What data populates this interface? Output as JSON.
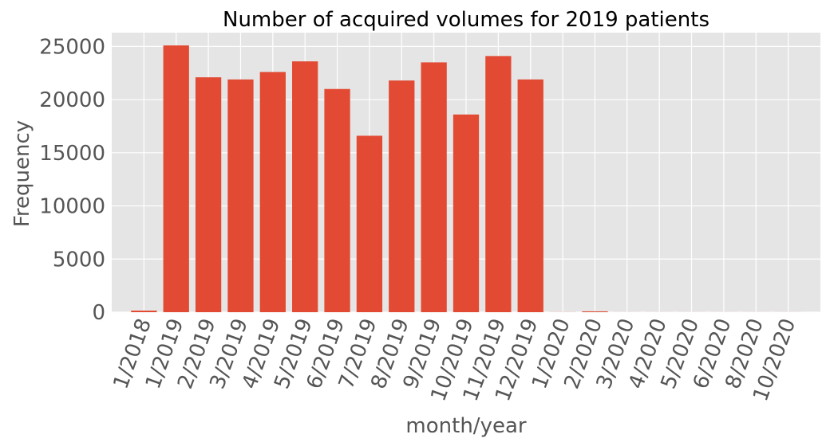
{
  "chart_data": {
    "type": "bar",
    "title": "Number of acquired volumes for 2019 patients",
    "xlabel": "month/year",
    "ylabel": "Frequency",
    "categories": [
      "1/2018",
      "1/2019",
      "2/2019",
      "3/2019",
      "4/2019",
      "5/2019",
      "6/2019",
      "7/2019",
      "8/2019",
      "9/2019",
      "10/2019",
      "11/2019",
      "12/2019",
      "1/2020",
      "2/2020",
      "3/2020",
      "4/2020",
      "5/2020",
      "6/2020",
      "8/2020",
      "10/2020"
    ],
    "values": [
      150,
      25100,
      22100,
      21900,
      22600,
      23600,
      21000,
      16600,
      21800,
      23500,
      18600,
      24100,
      21900,
      10,
      80,
      5,
      5,
      5,
      5,
      5,
      5
    ],
    "ylim": [
      0,
      26300
    ],
    "yticks": [
      0,
      5000,
      10000,
      15000,
      20000,
      25000
    ],
    "grid": true,
    "bar_color": "#E24A33",
    "background_color": "#E5E5E5"
  }
}
